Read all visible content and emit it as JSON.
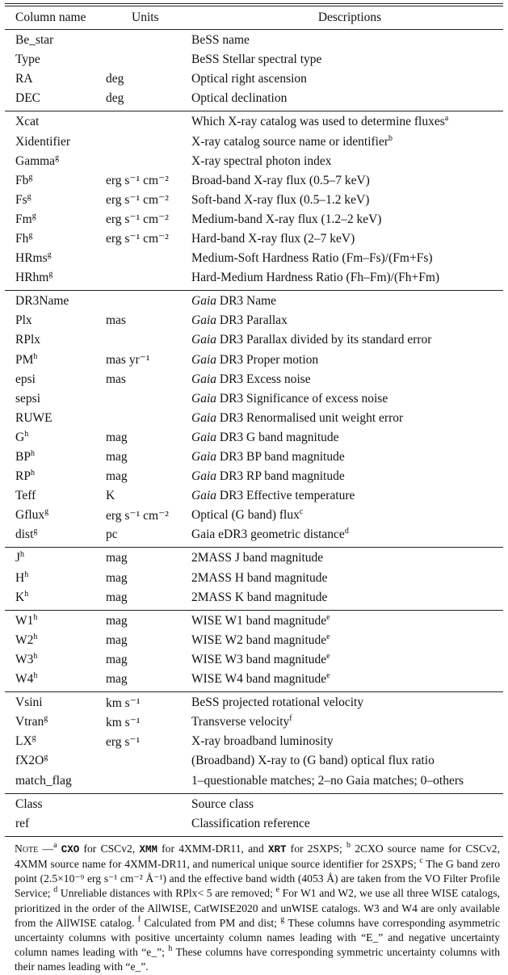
{
  "header": {
    "col1": "Column name",
    "col2": "Units",
    "col3": "Descriptions"
  },
  "groups": [
    [
      {
        "name": "Be_star",
        "sup": "",
        "unit": "",
        "unit_sup": "",
        "unit_tail": "",
        "desc": "BeSS name",
        "desc_sup": ""
      },
      {
        "name": "Type",
        "sup": "",
        "unit": "",
        "desc": "BeSS Stellar spectral type",
        "desc_sup": ""
      },
      {
        "name": "RA",
        "sup": "",
        "unit": "deg",
        "desc": "Optical right ascension",
        "desc_sup": ""
      },
      {
        "name": "DEC",
        "sup": "",
        "unit": "deg",
        "desc": "Optical declination",
        "desc_sup": ""
      }
    ],
    [
      {
        "name": "Xcat",
        "sup": "",
        "unit": "",
        "desc": "Which X-ray catalog was used to determine fluxes",
        "desc_sup": "a"
      },
      {
        "name": "Xidentifier",
        "sup": "",
        "unit": "",
        "desc": "X-ray catalog source name or identifier",
        "desc_sup": "b"
      },
      {
        "name": "Gamma",
        "sup": "g",
        "unit": "",
        "desc": "X-ray spectral photon index",
        "desc_sup": ""
      },
      {
        "name": "Fb",
        "sup": "g",
        "unit": "erg s⁻¹ cm⁻²",
        "desc": "Broad-band X-ray flux (0.5–7 keV)",
        "desc_sup": ""
      },
      {
        "name": "Fs",
        "sup": "g",
        "unit": "erg s⁻¹ cm⁻²",
        "desc": "Soft-band X-ray flux (0.5–1.2 keV)",
        "desc_sup": ""
      },
      {
        "name": "Fm",
        "sup": "g",
        "unit": "erg s⁻¹ cm⁻²",
        "desc": "Medium-band X-ray flux (1.2–2 keV)",
        "desc_sup": ""
      },
      {
        "name": "Fh",
        "sup": "g",
        "unit": "erg s⁻¹ cm⁻²",
        "desc": "Hard-band X-ray flux (2–7 keV)",
        "desc_sup": ""
      },
      {
        "name": "HRms",
        "sup": "g",
        "unit": "",
        "desc": "Medium-Soft Hardness Ratio (Fm–Fs)/(Fm+Fs)",
        "desc_sup": ""
      },
      {
        "name": "HRhm",
        "sup": "g",
        "unit": "",
        "desc": "Hard-Medium Hardness Ratio (Fh–Fm)/(Fh+Fm)",
        "desc_sup": ""
      }
    ],
    [
      {
        "name": "DR3Name",
        "sup": "",
        "unit": "",
        "desc_italic": "Gaia",
        "desc": " DR3 Name",
        "desc_sup": ""
      },
      {
        "name": "Plx",
        "sup": "",
        "unit": "mas",
        "desc_italic": "Gaia",
        "desc": " DR3 Parallax",
        "desc_sup": ""
      },
      {
        "name": "RPlx",
        "sup": "",
        "unit": "",
        "desc_italic": "Gaia",
        "desc": " DR3 Parallax divided by its standard error",
        "desc_sup": ""
      },
      {
        "name": "PM",
        "sup": "h",
        "unit": "mas yr⁻¹",
        "desc_italic": "Gaia",
        "desc": " DR3 Proper motion",
        "desc_sup": ""
      },
      {
        "name": "epsi",
        "sup": "",
        "unit": "mas",
        "desc_italic": "Gaia",
        "desc": " DR3 Excess noise",
        "desc_sup": ""
      },
      {
        "name": "sepsi",
        "sup": "",
        "unit": "",
        "desc_italic": "Gaia",
        "desc": " DR3 Significance of excess noise",
        "desc_sup": ""
      },
      {
        "name": "RUWE",
        "sup": "",
        "unit": "",
        "desc_italic": "Gaia",
        "desc": " DR3 Renormalised unit weight error",
        "desc_sup": ""
      },
      {
        "name": "G",
        "sup": "h",
        "unit": "mag",
        "desc_italic": "Gaia",
        "desc": " DR3 G band magnitude",
        "desc_sup": ""
      },
      {
        "name": "BP",
        "sup": "h",
        "unit": "mag",
        "desc_italic": "Gaia",
        "desc": " DR3 BP band magnitude",
        "desc_sup": ""
      },
      {
        "name": "RP",
        "sup": "h",
        "unit": "mag",
        "desc_italic": "Gaia",
        "desc": " DR3 RP band magnitude",
        "desc_sup": ""
      },
      {
        "name": "Teff",
        "sup": "",
        "unit": "K",
        "desc_italic": "Gaia",
        "desc": " DR3 Effective temperature",
        "desc_sup": ""
      },
      {
        "name": "Gflux",
        "sup": "g",
        "unit": "erg s⁻¹ cm⁻²",
        "desc": "Optical (G band) flux",
        "desc_sup": "c"
      },
      {
        "name": "dist",
        "sup": "g",
        "unit": "pc",
        "desc": "Gaia eDR3 geometric distance",
        "desc_sup": "d"
      }
    ],
    [
      {
        "name": "J",
        "sup": "h",
        "unit": "mag",
        "desc": "2MASS J band magnitude",
        "desc_sup": ""
      },
      {
        "name": "H",
        "sup": "h",
        "unit": "mag",
        "desc": "2MASS H band magnitude",
        "desc_sup": ""
      },
      {
        "name": "K",
        "sup": "h",
        "unit": "mag",
        "desc": "2MASS K band magnitude",
        "desc_sup": ""
      }
    ],
    [
      {
        "name": "W1",
        "sup": "h",
        "unit": "mag",
        "desc": "WISE W1 band magnitude",
        "desc_sup": "e"
      },
      {
        "name": "W2",
        "sup": "h",
        "unit": "mag",
        "desc": "WISE W2 band magnitude",
        "desc_sup": "e"
      },
      {
        "name": "W3",
        "sup": "h",
        "unit": "mag",
        "desc": "WISE W3 band magnitude",
        "desc_sup": "e"
      },
      {
        "name": "W4",
        "sup": "h",
        "unit": "mag",
        "desc": "WISE W4 band magnitude",
        "desc_sup": "e"
      }
    ],
    [
      {
        "name": "Vsini",
        "sup": "",
        "unit": "km s⁻¹",
        "desc": "BeSS projected rotational velocity",
        "desc_sup": ""
      },
      {
        "name": "Vtran",
        "sup": "g",
        "unit": "km s⁻¹",
        "desc": "Transverse velocity",
        "desc_sup": "f"
      },
      {
        "name": "LX",
        "sup": "g",
        "unit": "erg s⁻¹",
        "desc": "X-ray broadband luminosity",
        "desc_sup": ""
      },
      {
        "name": "fX2O",
        "sup": "g",
        "unit": "",
        "desc": "(Broadband) X-ray to (G band) optical flux ratio",
        "desc_sup": ""
      },
      {
        "name": "match_flag",
        "sup": "",
        "unit": "",
        "desc": "1–questionable matches; 2–no Gaia matches; 0–others",
        "desc_sup": ""
      }
    ],
    [
      {
        "name": "Class",
        "sup": "",
        "unit": "",
        "desc": "Source class",
        "desc_sup": ""
      },
      {
        "name": "ref",
        "sup": "",
        "unit": "",
        "desc": "Classification reference",
        "desc_sup": ""
      }
    ]
  ],
  "note": {
    "label": "Note",
    "segments": [
      {
        "t": "—",
        "k": "text"
      },
      {
        "t": "a",
        "k": "sup"
      },
      {
        "t": " ",
        "k": "text"
      },
      {
        "t": "CXO",
        "k": "mono"
      },
      {
        "t": " for CSCv2, ",
        "k": "text"
      },
      {
        "t": "XMM",
        "k": "mono"
      },
      {
        "t": " for 4XMM-DR11, and ",
        "k": "text"
      },
      {
        "t": "XRT",
        "k": "mono"
      },
      {
        "t": " for 2SXPS; ",
        "k": "text"
      },
      {
        "t": "b",
        "k": "sup"
      },
      {
        "t": " 2CXO source name for CSCv2, 4XMM source name for 4XMM-DR11, and numerical unique source identifier for 2SXPS; ",
        "k": "text"
      },
      {
        "t": "c",
        "k": "sup"
      },
      {
        "t": " The G band zero point (2.5×10⁻⁹ erg s⁻¹ cm⁻² Å⁻¹) and the effective band width (4053 Å) are taken from the VO Filter Profile Service; ",
        "k": "text"
      },
      {
        "t": "d",
        "k": "sup"
      },
      {
        "t": " Unreliable distances with RPlx< 5 are removed; ",
        "k": "text"
      },
      {
        "t": "e",
        "k": "sup"
      },
      {
        "t": " For W1 and W2, we use all three WISE catalogs, prioritized in the order of the AllWISE, CatWISE2020 and unWISE catalogs. W3 and W4 are only available from the AllWISE catalog. ",
        "k": "text"
      },
      {
        "t": "f",
        "k": "sup"
      },
      {
        "t": " Calculated from PM and dist; ",
        "k": "text"
      },
      {
        "t": "g",
        "k": "sup"
      },
      {
        "t": " These columns have corresponding asymmetric uncertainty columns with positive uncertainty column names leading with “E_” and negative uncertainty column names leading with “e_”; ",
        "k": "text"
      },
      {
        "t": "h",
        "k": "sup"
      },
      {
        "t": " These columns have corresponding symmetric uncertainty columns with their names leading with “e_”.",
        "k": "text"
      }
    ]
  }
}
